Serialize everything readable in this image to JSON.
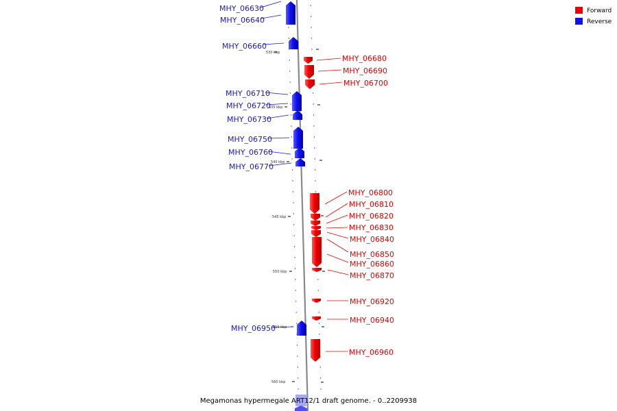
{
  "caption": "Megamonas hypermegale ART12/1 draft genome. - 0..2209938",
  "legend": [
    {
      "label": "Forward",
      "color": "#ee0000"
    },
    {
      "label": "Reverse",
      "color": "#1010ee"
    }
  ],
  "colors": {
    "forward": "#ee0000",
    "reverse": "#1010ee",
    "backbone": "#888888"
  },
  "ticks": [
    {
      "label": "530 kbp"
    },
    {
      "label": "535 kbp"
    },
    {
      "label": "540 kbp"
    },
    {
      "label": "545 kbp"
    },
    {
      "label": "550 kbp"
    },
    {
      "label": "555 kbp"
    },
    {
      "label": "560 kbp"
    }
  ],
  "genes": [
    {
      "name": "MHY_06630",
      "strand": "reverse"
    },
    {
      "name": "MHY_06640",
      "strand": "reverse"
    },
    {
      "name": "MHY_06660",
      "strand": "reverse"
    },
    {
      "name": "MHY_06680",
      "strand": "forward"
    },
    {
      "name": "MHY_06690",
      "strand": "forward"
    },
    {
      "name": "MHY_06700",
      "strand": "forward"
    },
    {
      "name": "MHY_06710",
      "strand": "reverse"
    },
    {
      "name": "MHY_06720",
      "strand": "reverse"
    },
    {
      "name": "MHY_06730",
      "strand": "reverse"
    },
    {
      "name": "MHY_06750",
      "strand": "reverse"
    },
    {
      "name": "MHY_06760",
      "strand": "reverse"
    },
    {
      "name": "MHY_06770",
      "strand": "reverse"
    },
    {
      "name": "MHY_06800",
      "strand": "forward"
    },
    {
      "name": "MHY_06810",
      "strand": "forward"
    },
    {
      "name": "MHY_06820",
      "strand": "forward"
    },
    {
      "name": "MHY_06830",
      "strand": "forward"
    },
    {
      "name": "MHY_06840",
      "strand": "forward"
    },
    {
      "name": "MHY_06850",
      "strand": "forward"
    },
    {
      "name": "MHY_06860",
      "strand": "forward"
    },
    {
      "name": "MHY_06870",
      "strand": "forward"
    },
    {
      "name": "MHY_06920",
      "strand": "forward"
    },
    {
      "name": "MHY_06940",
      "strand": "forward"
    },
    {
      "name": "MHY_06950",
      "strand": "reverse"
    },
    {
      "name": "MHY_06960",
      "strand": "forward"
    }
  ]
}
